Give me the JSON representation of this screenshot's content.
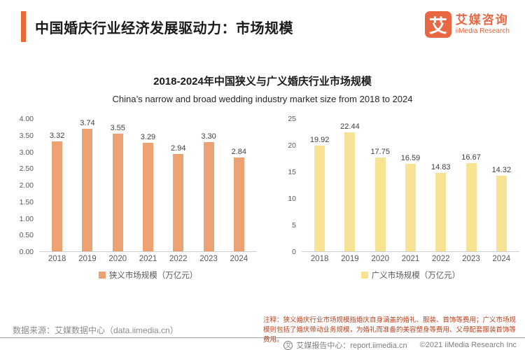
{
  "header": {
    "title": "中国婚庆行业经济发展驱动力：市场规模",
    "logo": {
      "glyph": "艾",
      "name_cn": "艾媒咨询",
      "name_en": "iiMedia Research"
    }
  },
  "chart_section": {
    "title": "2018-2024年中国狭义与广义婚庆行业市场规模",
    "subtitle": "China’s narrow and broad wedding industry market size from 2018 to 2024"
  },
  "chart_data": [
    {
      "type": "bar",
      "categories": [
        "2018",
        "2019",
        "2020",
        "2021",
        "2022",
        "2023",
        "2024"
      ],
      "values": [
        3.32,
        3.74,
        3.55,
        3.29,
        2.94,
        3.3,
        2.84
      ],
      "value_labels": [
        "3.32",
        "3.74",
        "3.55",
        "3.29",
        "2.94",
        "3.30",
        "2.84"
      ],
      "ylim": [
        0,
        4
      ],
      "yticks": [
        "4.00",
        "3.50",
        "3.00",
        "2.50",
        "2.00",
        "1.50",
        "1.00",
        "0.50",
        "0.00"
      ],
      "color": "#EDA273",
      "legend": "狭义市场规模（万亿元）",
      "legend_position": "bottom",
      "grid": false,
      "xlabel": "",
      "ylabel": ""
    },
    {
      "type": "bar",
      "categories": [
        "2018",
        "2019",
        "2020",
        "2021",
        "2022",
        "2023",
        "2024"
      ],
      "values": [
        19.92,
        22.44,
        17.75,
        16.59,
        14.83,
        16.67,
        14.32
      ],
      "value_labels": [
        "19.92",
        "22.44",
        "17.75",
        "16.59",
        "14.83",
        "16.67",
        "14.32"
      ],
      "ylim": [
        0,
        25
      ],
      "yticks": [
        "25",
        "20",
        "15",
        "10",
        "5",
        "0"
      ],
      "color": "#F8E294",
      "legend": "广义市场规模（万亿元）",
      "legend_position": "bottom",
      "grid": false,
      "xlabel": "",
      "ylabel": ""
    }
  ],
  "footer": {
    "source": "数据来源：艾媒数据中心（data.iimedia.cn）",
    "note": "注释：狭义婚庆行业市场规模指婚庆自身涵盖的婚礼、服装、首饰等费用；广义市场规模则包括了婚庆带动业务规模，为婚礼而准备的美容塑身等费用、父母配套服装首饰等费用。",
    "report_center": "艾媒报告中心：report.iimedia.cn",
    "copyright": "©2021  iiMedia Research Inc",
    "logo_glyph": "艾"
  },
  "colors": {
    "accent": "#EA6B32",
    "narrow_bar": "#EDA273",
    "broad_bar": "#F8E294",
    "note_text": "#B5411F"
  }
}
